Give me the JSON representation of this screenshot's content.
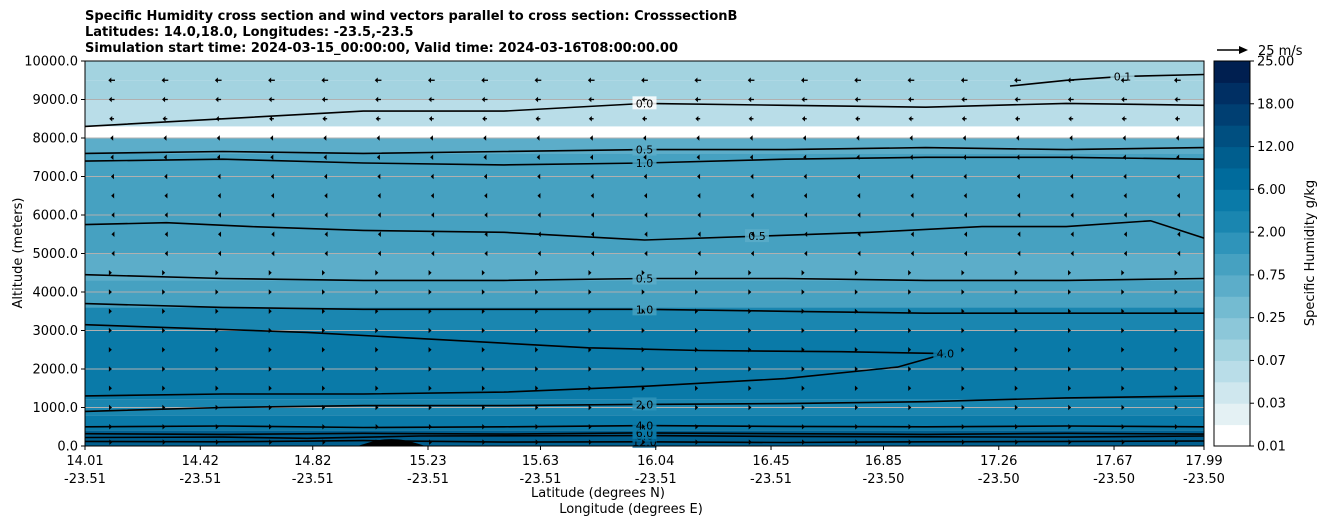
{
  "title": {
    "line1": "Specific Humidity cross section and wind vectors parallel to cross section: CrosssectionB",
    "line2": "Latitudes: 14.0,18.0, Longitudes: -23.5,-23.5",
    "line3": "Simulation start time: 2024-03-15_00:00:00, Valid time: 2024-03-16T08:00:00.00"
  },
  "quiver_key": {
    "label": "25 m/s"
  },
  "chart_data": {
    "type": "heatmap",
    "subtype": "filled-contour cross section with line contours and wind quiver",
    "ylabel": "Altitude (meters)",
    "xlabel_line1": "Latitude (degrees N)",
    "xlabel_line2": "Longitude (degrees E)",
    "ylim": [
      0,
      10000
    ],
    "xlim": [
      14.01,
      17.99
    ],
    "grid": "horizontal",
    "y_ticks": [
      "0.0",
      "1000.0",
      "2000.0",
      "3000.0",
      "4000.0",
      "5000.0",
      "6000.0",
      "7000.0",
      "8000.0",
      "9000.0",
      "10000.0"
    ],
    "y_tick_values": [
      0,
      1000,
      2000,
      3000,
      4000,
      5000,
      6000,
      7000,
      8000,
      9000,
      10000
    ],
    "x_ticks": [
      {
        "lat": "14.01",
        "lon": "-23.51"
      },
      {
        "lat": "14.42",
        "lon": "-23.51"
      },
      {
        "lat": "14.82",
        "lon": "-23.51"
      },
      {
        "lat": "15.23",
        "lon": "-23.51"
      },
      {
        "lat": "15.63",
        "lon": "-23.51"
      },
      {
        "lat": "16.04",
        "lon": "-23.51"
      },
      {
        "lat": "16.45",
        "lon": "-23.51"
      },
      {
        "lat": "16.85",
        "lon": "-23.50"
      },
      {
        "lat": "17.26",
        "lon": "-23.50"
      },
      {
        "lat": "17.67",
        "lon": "-23.50"
      },
      {
        "lat": "17.99",
        "lon": "-23.50"
      }
    ],
    "colorbar": {
      "label": "Specific Humidity g/kg",
      "levels": [
        "0.01",
        "0.03",
        "0.07",
        "0.25",
        "0.75",
        "2.00",
        "6.00",
        "12.00",
        "18.00",
        "25.00"
      ],
      "colors": [
        "#ffffff",
        "#e4f1f4",
        "#cfe7ee",
        "#b9dde8",
        "#a3d3e0",
        "#8cc7d9",
        "#74bbd1",
        "#5cadc9",
        "#46a1c1",
        "#2f94ba",
        "#1a86b0",
        "#0a7aa8",
        "#006b9c",
        "#005e8e",
        "#004f80",
        "#003f72",
        "#002f63",
        "#001f50"
      ]
    },
    "humidity_layers": [
      {
        "bottom": 9500,
        "top": 10000,
        "value": 0.07
      },
      {
        "bottom": 9000,
        "top": 9500,
        "value": 0.1
      },
      {
        "bottom": 8300,
        "top": 9000,
        "value": 0.05
      },
      {
        "bottom": 8000,
        "top": 8300,
        "value": 0.01
      },
      {
        "bottom": 7600,
        "top": 8000,
        "value": 0.5
      },
      {
        "bottom": 7000,
        "top": 7600,
        "value": 1.0
      },
      {
        "bottom": 6000,
        "top": 7000,
        "value": 1.2
      },
      {
        "bottom": 5000,
        "top": 6000,
        "value": 0.9
      },
      {
        "bottom": 4300,
        "top": 5000,
        "value": 0.6
      },
      {
        "bottom": 3600,
        "top": 4300,
        "value": 1.2
      },
      {
        "bottom": 3000,
        "top": 3600,
        "value": 2.5
      },
      {
        "bottom": 2000,
        "top": 3000,
        "value": 5.0
      },
      {
        "bottom": 1200,
        "top": 2000,
        "value": 4.5
      },
      {
        "bottom": 800,
        "top": 1200,
        "value": 3.0
      },
      {
        "bottom": 400,
        "top": 800,
        "value": 6.0
      },
      {
        "bottom": 0,
        "top": 400,
        "value": 12.0
      }
    ],
    "contour_lines": [
      {
        "label": "12.0",
        "points": [
          [
            14.01,
            120
          ],
          [
            14.5,
            110
          ],
          [
            15.0,
            140
          ],
          [
            15.5,
            100
          ],
          [
            16.0,
            110
          ],
          [
            16.5,
            90
          ],
          [
            17.0,
            110
          ],
          [
            17.5,
            120
          ],
          [
            17.99,
            130
          ]
        ]
      },
      {
        "label": "8.0",
        "points": [
          [
            14.01,
            220
          ],
          [
            14.5,
            230
          ],
          [
            14.8,
            200
          ],
          [
            15.2,
            260
          ],
          [
            16.0,
            270
          ],
          [
            16.5,
            250
          ],
          [
            17.0,
            240
          ],
          [
            17.5,
            230
          ],
          [
            17.99,
            260
          ]
        ]
      },
      {
        "label": "6.0",
        "points": [
          [
            14.01,
            320
          ],
          [
            14.5,
            300
          ],
          [
            15.0,
            330
          ],
          [
            15.5,
            310
          ],
          [
            16.0,
            340
          ],
          [
            16.5,
            320
          ],
          [
            17.0,
            300
          ],
          [
            17.5,
            330
          ],
          [
            17.99,
            310
          ]
        ]
      },
      {
        "label": "4.0",
        "points": [
          [
            14.01,
            500
          ],
          [
            14.5,
            520
          ],
          [
            15.0,
            480
          ],
          [
            15.5,
            500
          ],
          [
            16.0,
            530
          ],
          [
            16.5,
            510
          ],
          [
            17.0,
            500
          ],
          [
            17.5,
            520
          ],
          [
            17.99,
            500
          ]
        ]
      },
      {
        "label": "2.0",
        "points": [
          [
            14.01,
            900
          ],
          [
            14.5,
            1000
          ],
          [
            15.0,
            1050
          ],
          [
            15.5,
            1050
          ],
          [
            16.0,
            1080
          ],
          [
            16.5,
            1100
          ],
          [
            17.0,
            1150
          ],
          [
            17.5,
            1250
          ],
          [
            17.99,
            1300
          ]
        ]
      },
      {
        "label": "4.0",
        "points": [
          [
            14.01,
            1300
          ],
          [
            14.5,
            1350
          ],
          [
            15.0,
            1350
          ],
          [
            15.5,
            1400
          ],
          [
            16.0,
            1550
          ],
          [
            16.5,
            1750
          ],
          [
            16.9,
            2050
          ],
          [
            17.07,
            2400
          ],
          [
            16.7,
            2450
          ],
          [
            16.2,
            2480
          ],
          [
            15.8,
            2550
          ],
          [
            15.3,
            2750
          ],
          [
            14.8,
            2950
          ],
          [
            14.01,
            3150
          ]
        ]
      },
      {
        "label": "1.0",
        "points": [
          [
            14.01,
            3700
          ],
          [
            14.5,
            3600
          ],
          [
            15.0,
            3550
          ],
          [
            15.5,
            3550
          ],
          [
            16.0,
            3550
          ],
          [
            16.5,
            3500
          ],
          [
            17.0,
            3450
          ],
          [
            17.5,
            3450
          ],
          [
            17.99,
            3450
          ]
        ]
      },
      {
        "label": "0.5",
        "points": [
          [
            14.01,
            4450
          ],
          [
            14.5,
            4350
          ],
          [
            15.0,
            4300
          ],
          [
            15.5,
            4300
          ],
          [
            16.0,
            4350
          ],
          [
            16.5,
            4350
          ],
          [
            17.0,
            4300
          ],
          [
            17.5,
            4300
          ],
          [
            17.99,
            4350
          ]
        ]
      },
      {
        "label": "0.5",
        "points": [
          [
            14.01,
            5750
          ],
          [
            14.3,
            5800
          ],
          [
            14.6,
            5700
          ],
          [
            15.0,
            5600
          ],
          [
            15.5,
            5550
          ],
          [
            16.0,
            5350
          ],
          [
            16.4,
            5450
          ],
          [
            16.8,
            5550
          ],
          [
            17.2,
            5700
          ],
          [
            17.5,
            5700
          ],
          [
            17.8,
            5850
          ],
          [
            17.99,
            5400
          ]
        ]
      },
      {
        "label": "1.0",
        "points": [
          [
            14.01,
            7400
          ],
          [
            14.5,
            7450
          ],
          [
            15.0,
            7350
          ],
          [
            15.5,
            7300
          ],
          [
            16.0,
            7350
          ],
          [
            16.5,
            7450
          ],
          [
            17.0,
            7500
          ],
          [
            17.5,
            7500
          ],
          [
            17.99,
            7450
          ]
        ]
      },
      {
        "label": "0.5",
        "points": [
          [
            14.01,
            7600
          ],
          [
            14.5,
            7650
          ],
          [
            15.0,
            7600
          ],
          [
            15.5,
            7650
          ],
          [
            16.0,
            7700
          ],
          [
            16.5,
            7700
          ],
          [
            17.0,
            7750
          ],
          [
            17.5,
            7700
          ],
          [
            17.99,
            7750
          ]
        ]
      },
      {
        "label": "0.0",
        "points": [
          [
            14.01,
            8300
          ],
          [
            14.5,
            8500
          ],
          [
            15.0,
            8700
          ],
          [
            15.5,
            8700
          ],
          [
            16.0,
            8900
          ],
          [
            16.5,
            8850
          ],
          [
            17.0,
            8800
          ],
          [
            17.5,
            8900
          ],
          [
            17.99,
            8850
          ]
        ]
      },
      {
        "label": "0.1",
        "points": [
          [
            17.3,
            9350
          ],
          [
            17.5,
            9500
          ],
          [
            17.7,
            9600
          ],
          [
            17.99,
            9650
          ]
        ]
      }
    ],
    "wind": {
      "direction": "westward (negative along-section)",
      "reference_speed_mps": 25,
      "speed_by_altitude": [
        {
          "altitude": 9500,
          "speed": 7
        },
        {
          "altitude": 9000,
          "speed": 6
        },
        {
          "altitude": 8500,
          "speed": 5
        },
        {
          "altitude": 8000,
          "speed": 3
        },
        {
          "altitude": 7500,
          "speed": 2.5
        },
        {
          "altitude": 7000,
          "speed": 1.5
        },
        {
          "altitude": 6500,
          "speed": 1
        },
        {
          "altitude": 6000,
          "speed": 0.6
        },
        {
          "altitude": 5500,
          "speed": 0.4
        },
        {
          "altitude": 5000,
          "speed": 0.4
        },
        {
          "altitude": 4500,
          "speed": -0.5
        },
        {
          "altitude": 4000,
          "speed": -0.5
        },
        {
          "altitude": 3500,
          "speed": -0.5
        },
        {
          "altitude": 3000,
          "speed": -0.4
        },
        {
          "altitude": 2500,
          "speed": -0.4
        },
        {
          "altitude": 2000,
          "speed": -0.5
        },
        {
          "altitude": 1500,
          "speed": -0.6
        },
        {
          "altitude": 1000,
          "speed": -0.8
        },
        {
          "altitude": 500,
          "speed": -1.2
        },
        {
          "altitude": 100,
          "speed": -1.5
        }
      ]
    },
    "terrain": {
      "peak_lat": 15.1,
      "peak_altitude": 180,
      "half_width_deg": 0.12
    }
  }
}
